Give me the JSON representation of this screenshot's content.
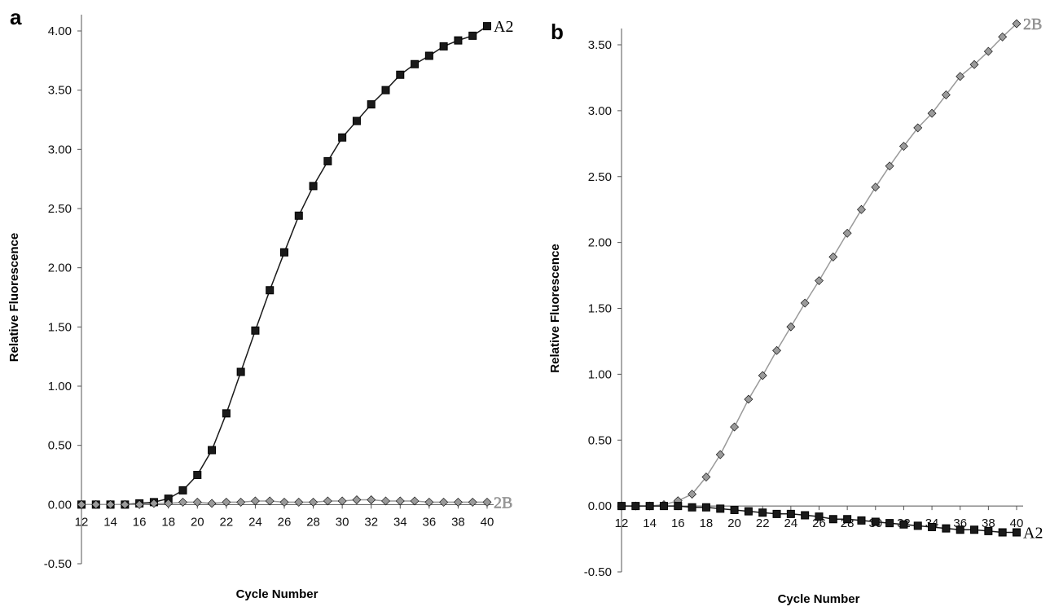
{
  "chart_data": [
    {
      "type": "line",
      "panel_label": "a",
      "xlabel": "Cycle Number",
      "ylabel": "Relative Fluorescence",
      "xlim": [
        12,
        40
      ],
      "ylim": [
        -0.5,
        4.0
      ],
      "x_ticks": [
        12,
        14,
        16,
        18,
        20,
        22,
        24,
        26,
        28,
        30,
        32,
        34,
        36,
        38,
        40
      ],
      "y_ticks": [
        -0.5,
        0.0,
        0.5,
        1.0,
        1.5,
        2.0,
        2.5,
        3.0,
        3.5,
        4.0
      ],
      "x_tick_labels": [
        "12",
        "14",
        "16",
        "18",
        "20",
        "22",
        "24",
        "26",
        "28",
        "30",
        "32",
        "34",
        "36",
        "38",
        "40"
      ],
      "y_tick_labels": [
        "-0.50",
        "0.00",
        "0.50",
        "1.00",
        "1.50",
        "2.00",
        "2.50",
        "3.00",
        "3.50",
        "4.00"
      ],
      "grid": false,
      "x": [
        12,
        13,
        14,
        15,
        16,
        17,
        18,
        19,
        20,
        21,
        22,
        23,
        24,
        25,
        26,
        27,
        28,
        29,
        30,
        31,
        32,
        33,
        34,
        35,
        36,
        37,
        38,
        39,
        40
      ],
      "series": [
        {
          "name": "A2",
          "marker": "square",
          "color": "#1a1a1a",
          "values": [
            0.0,
            0.0,
            0.0,
            0.0,
            0.01,
            0.02,
            0.05,
            0.12,
            0.25,
            0.46,
            0.77,
            1.12,
            1.47,
            1.81,
            2.13,
            2.44,
            2.69,
            2.9,
            3.1,
            3.24,
            3.38,
            3.5,
            3.63,
            3.72,
            3.79,
            3.87,
            3.92,
            3.96,
            4.04
          ]
        },
        {
          "name": "2B",
          "marker": "diamond",
          "color": "#9a9a9a",
          "values": [
            0.0,
            0.0,
            0.0,
            0.0,
            0.0,
            0.01,
            0.01,
            0.02,
            0.02,
            0.01,
            0.02,
            0.02,
            0.03,
            0.03,
            0.02,
            0.02,
            0.02,
            0.03,
            0.03,
            0.04,
            0.04,
            0.03,
            0.03,
            0.03,
            0.02,
            0.02,
            0.02,
            0.02,
            0.02
          ]
        }
      ]
    },
    {
      "type": "line",
      "panel_label": "b",
      "xlabel": "Cycle Number",
      "ylabel": "Relative Fluorescence",
      "xlim": [
        12,
        40
      ],
      "ylim": [
        -0.5,
        3.5
      ],
      "x_ticks": [
        12,
        14,
        16,
        18,
        20,
        22,
        24,
        26,
        28,
        30,
        32,
        34,
        36,
        38,
        40
      ],
      "y_ticks": [
        -0.5,
        0.0,
        0.5,
        1.0,
        1.5,
        2.0,
        2.5,
        3.0,
        3.5
      ],
      "x_tick_labels": [
        "12",
        "14",
        "16",
        "18",
        "20",
        "22",
        "24",
        "26",
        "28",
        "30",
        "32",
        "34",
        "36",
        "38",
        "40"
      ],
      "y_tick_labels": [
        "-0.50",
        "0.00",
        "0.50",
        "1.00",
        "1.50",
        "2.00",
        "2.50",
        "3.00",
        "3.50"
      ],
      "grid": false,
      "x": [
        12,
        13,
        14,
        15,
        16,
        17,
        18,
        19,
        20,
        21,
        22,
        23,
        24,
        25,
        26,
        27,
        28,
        29,
        30,
        31,
        32,
        33,
        34,
        35,
        36,
        37,
        38,
        39,
        40
      ],
      "series": [
        {
          "name": "2B",
          "marker": "diamond",
          "color": "#9a9a9a",
          "values": [
            0.0,
            0.0,
            0.0,
            0.01,
            0.04,
            0.09,
            0.22,
            0.39,
            0.6,
            0.81,
            0.99,
            1.18,
            1.36,
            1.54,
            1.71,
            1.89,
            2.07,
            2.25,
            2.42,
            2.58,
            2.73,
            2.87,
            2.98,
            3.12,
            3.26,
            3.35,
            3.45,
            3.56,
            3.66
          ]
        },
        {
          "name": "A2",
          "marker": "square",
          "color": "#1a1a1a",
          "values": [
            0.0,
            0.0,
            0.0,
            0.0,
            0.0,
            -0.01,
            -0.01,
            -0.02,
            -0.03,
            -0.04,
            -0.05,
            -0.06,
            -0.06,
            -0.07,
            -0.08,
            -0.1,
            -0.1,
            -0.11,
            -0.12,
            -0.13,
            -0.14,
            -0.15,
            -0.16,
            -0.17,
            -0.18,
            -0.18,
            -0.19,
            -0.2,
            -0.2
          ]
        }
      ]
    }
  ]
}
